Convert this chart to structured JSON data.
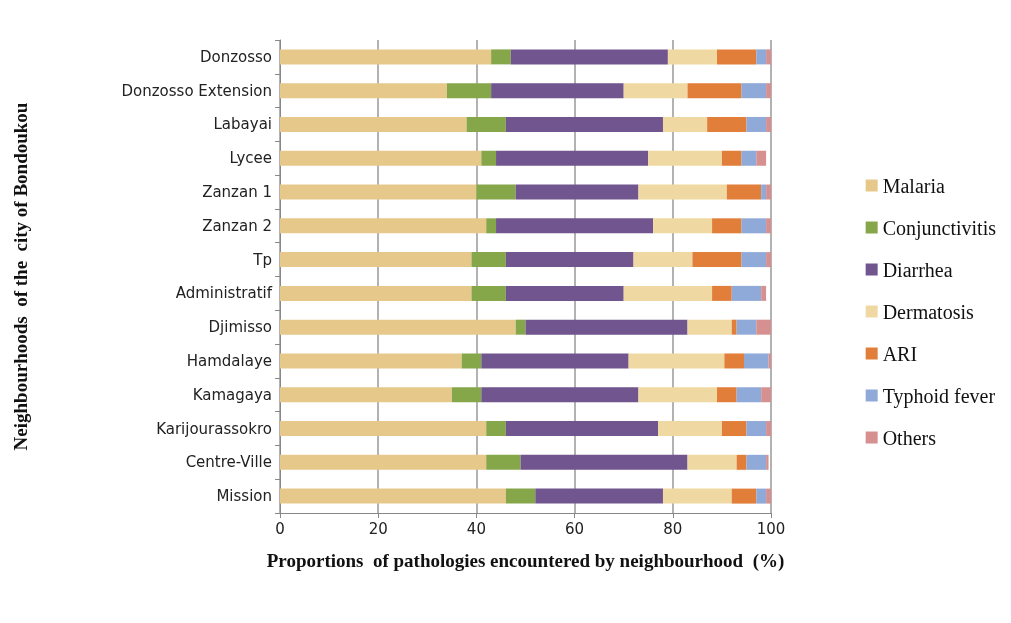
{
  "chart_data": {
    "type": "bar",
    "orientation": "horizontal",
    "stacked": true,
    "xlabel": "Proportions  of pathologies encountered by neighbourhood  (%)",
    "ylabel": "Neighbourhoods  of the  city of Bondoukou",
    "categories": [
      "Donzosso",
      "Donzosso Extension",
      "Labayai",
      "Lycee",
      "Zanzan 1",
      "Zanzan 2",
      "Tp",
      "Administratif",
      "Djimisso",
      "Hamdalaye",
      "Kamagaya",
      "Karijourassokro",
      "Centre-Ville",
      "Mission"
    ],
    "series": [
      {
        "name": "Malaria",
        "color": "#e6c98a",
        "values": [
          43,
          34,
          38,
          41,
          40,
          42,
          39,
          39,
          48,
          37,
          35,
          42,
          42,
          46
        ]
      },
      {
        "name": "Conjunctivitis",
        "color": "#86a64a",
        "values": [
          4,
          9,
          8,
          3,
          8,
          2,
          7,
          7,
          2,
          4,
          6,
          4,
          7,
          6
        ]
      },
      {
        "name": "Diarrhea",
        "color": "#71558f",
        "values": [
          32,
          27,
          32,
          31,
          25,
          32,
          26,
          24,
          33,
          30,
          32,
          31,
          34,
          26
        ]
      },
      {
        "name": "Dermatosis",
        "color": "#f0d8a2",
        "values": [
          10,
          13,
          9,
          15,
          18,
          12,
          12,
          18,
          9,
          19.5,
          16,
          13,
          10,
          14
        ]
      },
      {
        "name": "ARI",
        "color": "#e07e3a",
        "values": [
          8,
          11,
          8,
          4,
          7,
          6,
          10,
          4,
          1,
          4,
          4,
          5,
          2,
          5
        ]
      },
      {
        "name": "Typhoid fever",
        "color": "#8fa9d8",
        "values": [
          2,
          5,
          4,
          3,
          1,
          5,
          5,
          6,
          4,
          5,
          5,
          4,
          4,
          2
        ]
      },
      {
        "name": "Others",
        "color": "#d69090",
        "values": [
          1,
          1,
          1,
          2,
          1,
          1,
          1,
          1,
          3,
          0.5,
          2,
          1,
          0.5,
          1
        ]
      }
    ],
    "xlim": [
      0,
      100
    ],
    "xticks": [
      0,
      20,
      40,
      60,
      80,
      100
    ],
    "grid": "x",
    "legend": "right"
  }
}
